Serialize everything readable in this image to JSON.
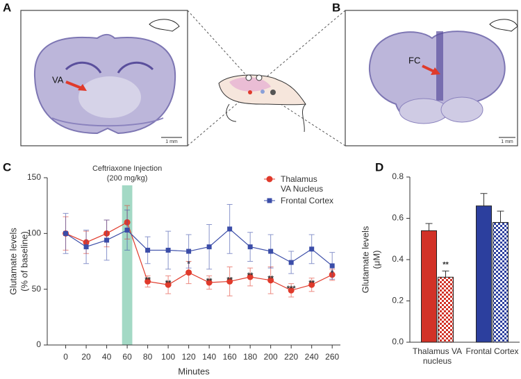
{
  "panels": {
    "a": "A",
    "b": "B",
    "c": "C",
    "d": "D"
  },
  "images": {
    "a_label": "VA",
    "a_scale": "1 mm",
    "b_label": "FC",
    "b_scale": "1 mm"
  },
  "chart_data": [
    {
      "type": "line",
      "annotation": [
        "Ceftriaxone Injection",
        "(200 mg/kg)"
      ],
      "shade": [
        55,
        65
      ],
      "shade_color": "#a3d9c5",
      "ylabel": [
        "Glutamate levels",
        "(% of baseline)"
      ],
      "xlabel": "Minutes",
      "x": [
        0,
        20,
        40,
        60,
        80,
        100,
        120,
        140,
        160,
        180,
        200,
        220,
        240,
        260
      ],
      "xlim": [
        -18,
        268
      ],
      "xticks": [
        0,
        20,
        40,
        60,
        80,
        100,
        120,
        140,
        160,
        180,
        200,
        220,
        240,
        260
      ],
      "ylim": [
        0,
        150
      ],
      "yticks": [
        0,
        50,
        100,
        150
      ],
      "series": [
        {
          "name": "Thalamus VA Nucleus",
          "color": "#e03a2b",
          "marker": "circle",
          "values": [
            100,
            92,
            100,
            110,
            57,
            54,
            65,
            56,
            57,
            61,
            58,
            49,
            54,
            63
          ],
          "errors": [
            15,
            10,
            12,
            15,
            5,
            8,
            10,
            6,
            13,
            8,
            12,
            6,
            6,
            5
          ],
          "significance": [
            null,
            null,
            null,
            null,
            "**",
            "**",
            "*",
            "**",
            "**",
            "**",
            "**",
            "***",
            "**",
            "*"
          ]
        },
        {
          "name": "Frontal Cortex",
          "color": "#3b4da8",
          "marker": "square",
          "values": [
            100,
            88,
            94,
            103,
            85,
            85,
            84,
            88,
            104,
            88,
            84,
            74,
            86,
            71
          ],
          "errors": [
            18,
            15,
            18,
            18,
            12,
            17,
            15,
            20,
            22,
            13,
            15,
            10,
            13,
            12
          ]
        }
      ]
    },
    {
      "type": "bar",
      "ylabel": [
        "Glutamate levels",
        "(μM)"
      ],
      "categories": [
        "Thalamus VA nucleus",
        "Frontal Cortex"
      ],
      "colors": [
        "#d23227",
        "#2c3f9e"
      ],
      "ylim": [
        0,
        0.8
      ],
      "yticks": [
        {
          "value": 0,
          "label": "0.0"
        },
        0.2,
        0.4,
        0.6,
        0.8
      ],
      "series": [
        {
          "pattern": "solid",
          "values": [
            0.54,
            0.66
          ],
          "errors": [
            0.035,
            0.06
          ]
        },
        {
          "pattern": "checker",
          "values": [
            0.315,
            0.58
          ],
          "errors": [
            0.03,
            0.055
          ],
          "significance": [
            "**",
            null
          ]
        }
      ]
    }
  ]
}
